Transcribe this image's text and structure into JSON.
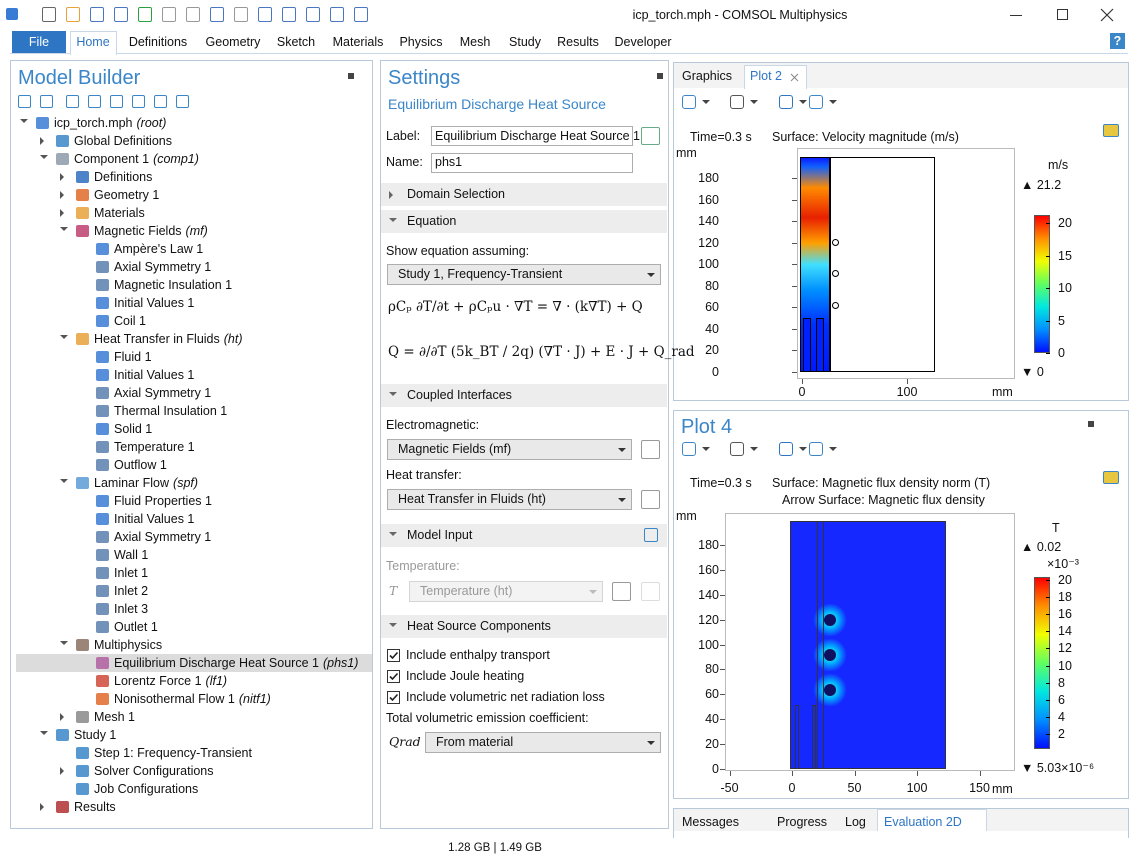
{
  "window": {
    "title": "icp_torch.mph - COMSOL Multiphysics",
    "help": "?",
    "status": "1.28 GB | 1.49 GB"
  },
  "ribbon": {
    "tabs": [
      "File",
      "Home",
      "Definitions",
      "Geometry",
      "Sketch",
      "Materials",
      "Physics",
      "Mesh",
      "Study",
      "Results",
      "Developer"
    ]
  },
  "model_builder": {
    "title": "Model Builder",
    "tree": [
      {
        "label": "icp_torch.mph",
        "tag": "(root)"
      },
      {
        "label": "Global Definitions"
      },
      {
        "label": "Component 1",
        "tag": "(comp1)"
      },
      {
        "label": "Definitions"
      },
      {
        "label": "Geometry 1"
      },
      {
        "label": "Materials"
      },
      {
        "label": "Magnetic Fields",
        "tag": "(mf)"
      },
      {
        "label": "Ampère's Law 1"
      },
      {
        "label": "Axial Symmetry 1"
      },
      {
        "label": "Magnetic Insulation 1"
      },
      {
        "label": "Initial Values 1"
      },
      {
        "label": "Coil 1"
      },
      {
        "label": "Heat Transfer in Fluids",
        "tag": "(ht)"
      },
      {
        "label": "Fluid 1"
      },
      {
        "label": "Initial Values 1"
      },
      {
        "label": "Axial Symmetry 1"
      },
      {
        "label": "Thermal Insulation 1"
      },
      {
        "label": "Solid 1"
      },
      {
        "label": "Temperature 1"
      },
      {
        "label": "Outflow 1"
      },
      {
        "label": "Laminar Flow",
        "tag": "(spf)"
      },
      {
        "label": "Fluid Properties 1"
      },
      {
        "label": "Initial Values 1"
      },
      {
        "label": "Axial Symmetry 1"
      },
      {
        "label": "Wall 1"
      },
      {
        "label": "Inlet 1"
      },
      {
        "label": "Inlet 2"
      },
      {
        "label": "Inlet 3"
      },
      {
        "label": "Outlet 1"
      },
      {
        "label": "Multiphysics"
      },
      {
        "label": "Equilibrium Discharge Heat Source 1",
        "tag": "(phs1)"
      },
      {
        "label": "Lorentz Force 1",
        "tag": "(lf1)"
      },
      {
        "label": "Nonisothermal Flow 1",
        "tag": "(nitf1)"
      },
      {
        "label": "Mesh 1"
      },
      {
        "label": "Study 1"
      },
      {
        "label": "Step 1: Frequency-Transient"
      },
      {
        "label": "Solver Configurations"
      },
      {
        "label": "Job Configurations"
      },
      {
        "label": "Results"
      }
    ]
  },
  "settings": {
    "title": "Settings",
    "subtitle": "Equilibrium Discharge Heat Source",
    "label_caption": "Label:",
    "label_value": "Equilibrium Discharge Heat Source 1",
    "name_caption": "Name:",
    "name_value": "phs1",
    "sections": [
      "Domain Selection",
      "Equation",
      "Coupled Interfaces",
      "Model Input",
      "Heat Source Components"
    ],
    "show_equation": "Show equation assuming:",
    "study_option": "Study 1, Frequency-Transient",
    "equations": [
      "ρCₚ ∂T/∂t + ρCₚu · ∇T = ∇ · (k∇T) + Q",
      "Q = ∂/∂T (5k_BT / 2q) (∇T · J) + E · J + Q_rad"
    ],
    "electromagnetic": "Electromagnetic:",
    "em_value": "Magnetic Fields (mf)",
    "heat_transfer": "Heat transfer:",
    "ht_value": "Heat Transfer in Fluids (ht)",
    "temperature": "Temperature:",
    "t_symbol": "T",
    "t_value": "Temperature (ht)",
    "checkboxes": [
      "Include enthalpy transport",
      "Include Joule heating",
      "Include volumetric net radiation loss"
    ],
    "emission": "Total volumetric emission coefficient:",
    "q_symbol": "Qrad",
    "q_value": "From material"
  },
  "graphics": {
    "tabs": [
      "Graphics",
      "Plot 2"
    ],
    "time": "Time=0.3 s",
    "title": "Surface: Velocity magnitude (m/s)",
    "y_unit": "mm",
    "x_unit": "mm",
    "yticks": [
      0,
      20,
      40,
      60,
      80,
      100,
      120,
      140,
      160,
      180
    ],
    "xticks": [
      0,
      100
    ],
    "colorbar": {
      "unit": "m/s",
      "max_label": "▲ 21.2",
      "min_label": "▼ 0",
      "ticks": [
        0,
        5,
        10,
        15,
        20
      ]
    }
  },
  "plot4": {
    "title": "Plot 4",
    "time": "Time=0.3 s",
    "lines": [
      "Surface: Magnetic flux density norm (T)",
      "Arrow Surface: Magnetic flux density"
    ],
    "y_unit": "mm",
    "x_unit": "mm",
    "yticks": [
      0,
      20,
      40,
      60,
      80,
      100,
      120,
      140,
      160,
      180
    ],
    "xticks": [
      -50,
      0,
      50,
      100,
      150
    ],
    "colorbar": {
      "unit": "T",
      "max_label": "▲ 0.02",
      "exponent": "×10⁻³",
      "min_label": "▼ 5.03×10⁻⁶",
      "ticks": [
        2,
        4,
        6,
        8,
        10,
        12,
        14,
        16,
        18,
        20
      ]
    }
  },
  "bottom_tabs": [
    "Messages",
    "Progress",
    "Log",
    "Evaluation 2D"
  ]
}
